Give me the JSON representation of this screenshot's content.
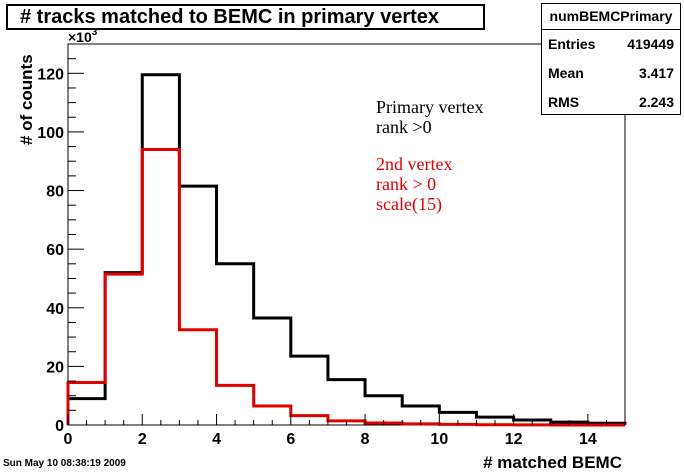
{
  "chart_data": {
    "type": "histogram",
    "title": "# tracks matched to BEMC  in primary vertex",
    "xlabel": "# matched BEMC",
    "ylabel": "# of counts",
    "y_multiplier_label": "×10",
    "y_multiplier_exp": "3",
    "xlim": [
      0,
      15
    ],
    "ylim": [
      0,
      130
    ],
    "x_ticks": [
      "0",
      "2",
      "4",
      "6",
      "8",
      "10",
      "12",
      "14"
    ],
    "y_ticks": [
      "0",
      "20",
      "40",
      "60",
      "80",
      "100",
      "120"
    ],
    "bin_edges": [
      0,
      1,
      2,
      3,
      4,
      5,
      6,
      7,
      8,
      9,
      10,
      11,
      12,
      13,
      14,
      15
    ],
    "series": [
      {
        "name": "Primary vertex rank >0",
        "color": "#000000",
        "values": [
          9,
          52,
          119.5,
          81.5,
          55,
          36.5,
          23.5,
          15.5,
          10,
          6.5,
          4.3,
          2.7,
          1.7,
          1.0,
          0.6
        ]
      },
      {
        "name": "2nd vertex rank > 0 scale(15)",
        "color": "#e00000",
        "values": [
          14.5,
          51.5,
          94,
          32.5,
          13.5,
          6.5,
          3.2,
          1.4,
          0.7,
          0.4,
          0.2,
          0.1,
          0.05,
          0.02,
          0.01
        ]
      }
    ],
    "annotations": [
      {
        "lines": [
          "Primary vertex",
          "rank >0"
        ],
        "color": "#000000"
      },
      {
        "lines": [
          "2nd vertex",
          "rank > 0",
          "scale(15)"
        ],
        "color": "#e00000"
      }
    ]
  },
  "stats": {
    "name": "numBEMCPrimary",
    "rows": [
      {
        "key": "Entries",
        "value": "419449"
      },
      {
        "key": "Mean",
        "value": "3.417"
      },
      {
        "key": "RMS",
        "value": "2.243"
      }
    ]
  },
  "footer": {
    "date": "Sun May 10 08:38:19 2009"
  }
}
